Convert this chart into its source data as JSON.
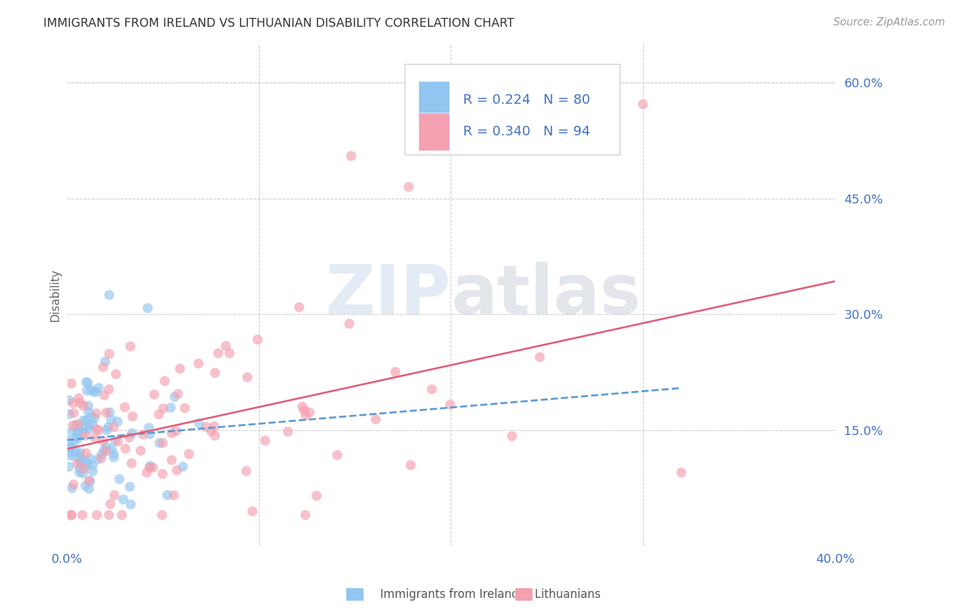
{
  "title": "IMMIGRANTS FROM IRELAND VS LITHUANIAN DISABILITY CORRELATION CHART",
  "source": "Source: ZipAtlas.com",
  "ylabel": "Disability",
  "xlim": [
    0.0,
    0.4
  ],
  "ylim": [
    0.0,
    0.65
  ],
  "y_ticks_right": [
    0.15,
    0.3,
    0.45,
    0.6
  ],
  "y_tick_labels_right": [
    "15.0%",
    "30.0%",
    "45.0%",
    "60.0%"
  ],
  "series1_color": "#92C5F0",
  "series2_color": "#F4A0B0",
  "series1_label": "Immigrants from Ireland",
  "series2_label": "Lithuanians",
  "series1_R": "0.224",
  "series1_N": "80",
  "series2_R": "0.340",
  "series2_N": "94",
  "trendline1_color": "#A0C4E8",
  "trendline2_color": "#E06080",
  "background_color": "#FFFFFF",
  "grid_color": "#CCCCCC",
  "axis_label_color": "#4472C4",
  "title_color": "#333333",
  "axis_tick_color": "#4472C4"
}
